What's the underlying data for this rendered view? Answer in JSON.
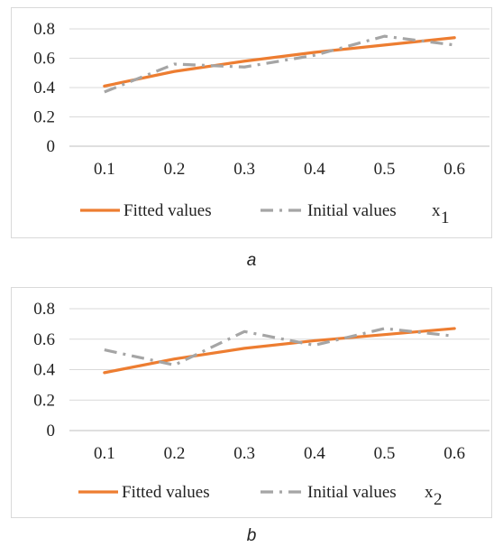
{
  "colors": {
    "fitted": "#ED7D31",
    "initial": "#A5A5A5",
    "grid": "#D9D9D9",
    "axis": "#BFBFBF"
  },
  "chart_data": [
    {
      "type": "line",
      "caption": "a",
      "variable_label": "x",
      "variable_subscript": "1",
      "x": [
        "0.1",
        "0.2",
        "0.3",
        "0.4",
        "0.5",
        "0.6"
      ],
      "yticks": [
        "0",
        "0.2",
        "0.4",
        "0.6",
        "0.8"
      ],
      "ylim": [
        0,
        0.8
      ],
      "grid": true,
      "legend": "bottom",
      "series": [
        {
          "name": "Fitted values",
          "style": "solid",
          "values": [
            0.41,
            0.51,
            0.58,
            0.64,
            0.69,
            0.74
          ]
        },
        {
          "name": "Initial values",
          "style": "dash-dot",
          "values": [
            0.37,
            0.56,
            0.54,
            0.62,
            0.75,
            0.69
          ]
        }
      ]
    },
    {
      "type": "line",
      "caption": "b",
      "variable_label": "x",
      "variable_subscript": "2",
      "x": [
        "0.1",
        "0.2",
        "0.3",
        "0.4",
        "0.5",
        "0.6"
      ],
      "yticks": [
        "0",
        "0.2",
        "0.4",
        "0.6",
        "0.8"
      ],
      "ylim": [
        0,
        0.8
      ],
      "grid": true,
      "legend": "bottom",
      "series": [
        {
          "name": "Fitted values",
          "style": "solid",
          "values": [
            0.38,
            0.47,
            0.54,
            0.59,
            0.63,
            0.67
          ]
        },
        {
          "name": "Initial values",
          "style": "dash-dot",
          "values": [
            0.53,
            0.43,
            0.65,
            0.56,
            0.67,
            0.62
          ]
        }
      ]
    }
  ]
}
